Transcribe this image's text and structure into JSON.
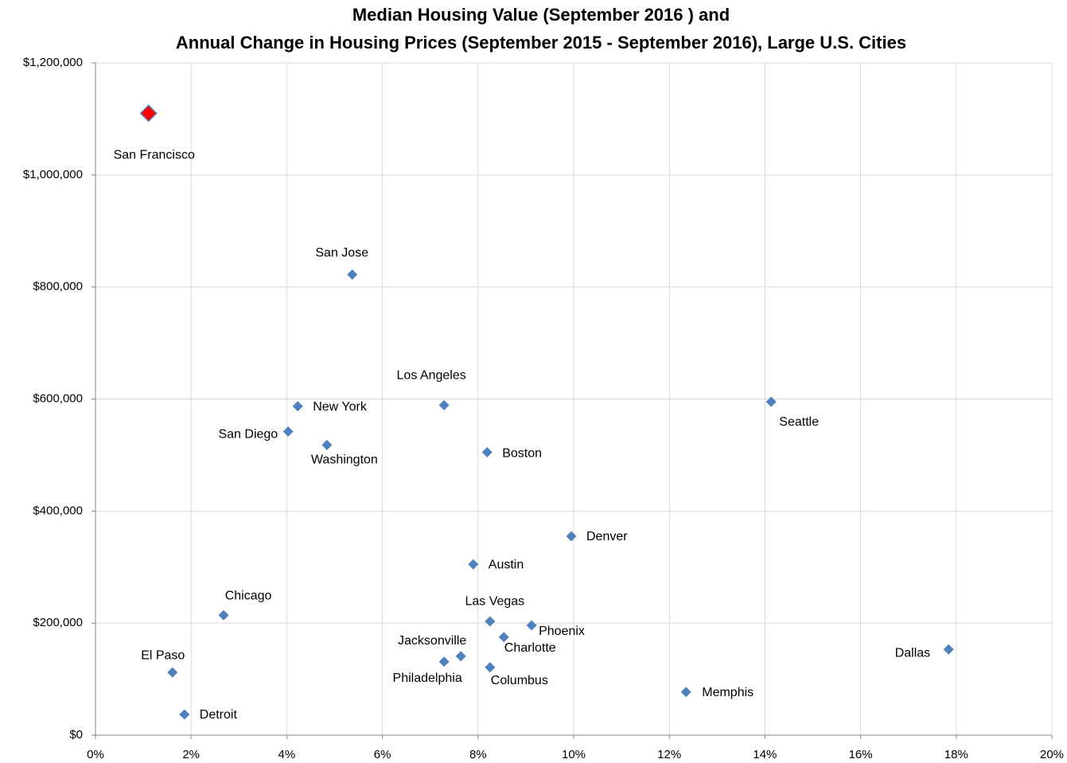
{
  "chart_data": {
    "type": "scatter",
    "title": [
      "Median Housing Value (September 2016 ) and",
      "Annual Change in Housing Prices (September 2015 - September 2016), Large U.S. Cities"
    ],
    "labels": [
      "San Francisco",
      "San Jose",
      "Los Angeles",
      "New York",
      "San Diego",
      "Washington",
      "Boston",
      "Seattle",
      "Denver",
      "Austin",
      "Chicago",
      "Las Vegas",
      "Phoenix",
      "Charlotte",
      "Jacksonville",
      "Philadelphia",
      "Columbus",
      "El Paso",
      "Detroit",
      "Memphis",
      "Dallas"
    ],
    "x": [
      1.11,
      5.37,
      7.29,
      4.23,
      4.03,
      4.84,
      8.19,
      14.13,
      9.95,
      7.9,
      2.68,
      8.25,
      9.12,
      8.54,
      7.64,
      7.29,
      8.25,
      1.61,
      1.86,
      12.35,
      17.84
    ],
    "values": [
      1110000,
      822000,
      589000,
      587000,
      542000,
      518000,
      505000,
      595000,
      355000,
      305000,
      214000,
      203000,
      196000,
      175000,
      141000,
      131000,
      121000,
      112000,
      37000,
      77000,
      153000
    ],
    "colors": [
      "#ff0000",
      "#4f81bd",
      "#4f81bd",
      "#4f81bd",
      "#4f81bd",
      "#4f81bd",
      "#4f81bd",
      "#4f81bd",
      "#4f81bd",
      "#4f81bd",
      "#4f81bd",
      "#4f81bd",
      "#4f81bd",
      "#4f81bd",
      "#4f81bd",
      "#4f81bd",
      "#4f81bd",
      "#4f81bd",
      "#4f81bd",
      "#4f81bd",
      "#4f81bd"
    ],
    "color": "#4f81bd",
    "xlim": [
      0,
      20
    ],
    "xticks": [
      {
        "value": 0,
        "label": "0%"
      },
      {
        "value": 2,
        "label": "2%"
      },
      {
        "value": 4,
        "label": "4%"
      },
      {
        "value": 6,
        "label": "6%"
      },
      {
        "value": 8,
        "label": "8%"
      },
      {
        "value": 10,
        "label": "10%"
      },
      {
        "value": 12,
        "label": "12%"
      },
      {
        "value": 14,
        "label": "14%"
      },
      {
        "value": 16,
        "label": "16%"
      },
      {
        "value": 18,
        "label": "18%"
      },
      {
        "value": 20,
        "label": "20%"
      }
    ],
    "ylim": [
      0,
      1200000
    ],
    "yticks": [
      {
        "value": 0,
        "label": "$0"
      },
      {
        "value": 200000,
        "label": "$200,000"
      },
      {
        "value": 400000,
        "label": "$400,000"
      },
      {
        "value": 600000,
        "label": "$600,000"
      },
      {
        "value": 800000,
        "label": "$800,000"
      },
      {
        "value": 1000000,
        "label": "$1,000,000"
      },
      {
        "value": 1200000,
        "label": "$1,200,000"
      }
    ],
    "grid": true
  }
}
